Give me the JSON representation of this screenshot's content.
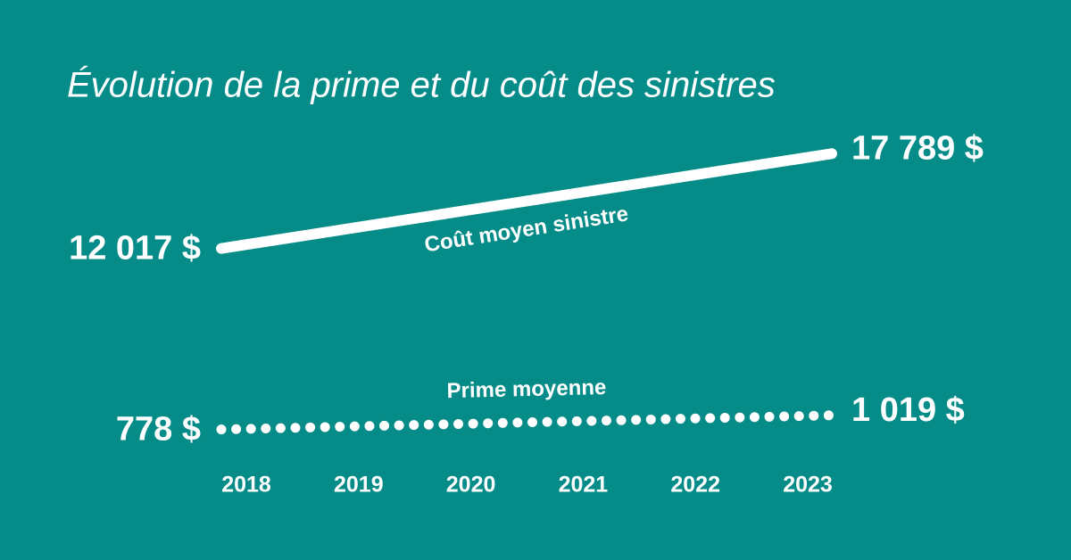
{
  "chart_data": {
    "type": "line",
    "title": "Évolution de la prime et du coût des sinistres",
    "x": [
      2018,
      2023
    ],
    "xlim": [
      2018,
      2023
    ],
    "xticks": [
      2018,
      2019,
      2020,
      2021,
      2022,
      2023
    ],
    "ylim": [
      0,
      19000
    ],
    "y2lim": [
      500,
      5800
    ],
    "background": "#058c88",
    "series": [
      {
        "name": "Coût moyen sinistre",
        "color": "#ffffff",
        "style": "solid",
        "values": [
          12017,
          17789
        ],
        "value_labels": [
          "12 017 $",
          "17 789 $"
        ]
      },
      {
        "name": "Prime moyenne",
        "color": "#ffffff",
        "style": "dotted",
        "axis": "y2",
        "values": [
          778,
          1019
        ],
        "value_labels": [
          "778 $",
          "1 019 $"
        ]
      }
    ]
  }
}
